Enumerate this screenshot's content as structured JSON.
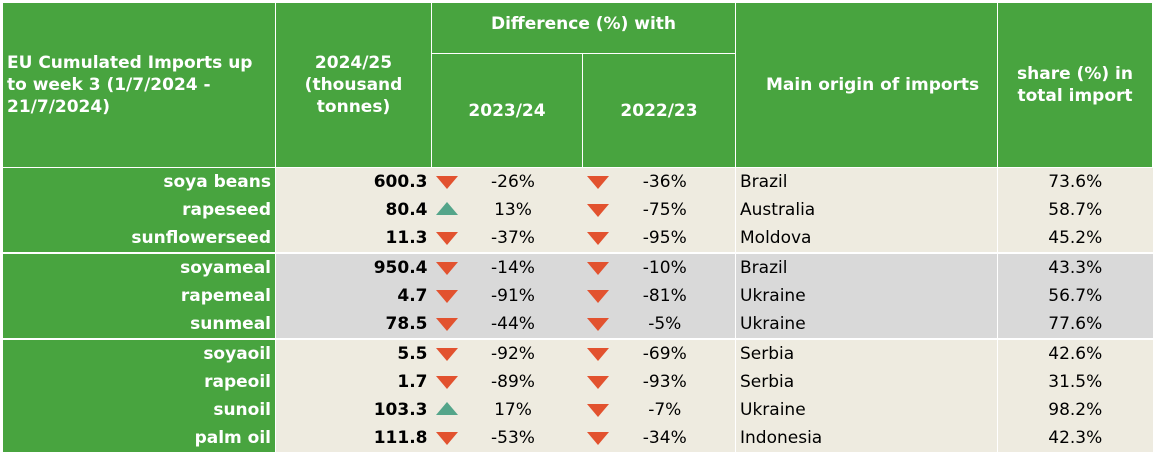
{
  "header": {
    "title": "EU Cumulated Imports up to week 3 (1/7/2024 - 21/7/2024)",
    "volume_header": "2024/25 (thousand tonnes)",
    "difference_header": "Difference (%) with",
    "diff_col_1": "2023/24",
    "diff_col_2": "2022/23",
    "origin_header": "Main origin of imports",
    "share_header": "share (%) in total import"
  },
  "colors": {
    "header_green": "#48a43f",
    "down_arrow": "#e2522f",
    "up_arrow": "#54a58a",
    "band_beige": "#eeebe0",
    "band_grey": "#d9d9d9"
  },
  "rows": [
    {
      "product": "soya beans",
      "volume": "600.3",
      "d1": "-26%",
      "d1_icon": "arrow-down-icon",
      "d2": "-36%",
      "d2_icon": "arrow-down-icon",
      "origin": "Brazil",
      "share": "73.6%"
    },
    {
      "product": "rapeseed",
      "volume": "80.4",
      "d1": "13%",
      "d1_icon": "arrow-up-icon",
      "d2": "-75%",
      "d2_icon": "arrow-down-icon",
      "origin": "Australia",
      "share": "58.7%"
    },
    {
      "product": "sunflowerseed",
      "volume": "11.3",
      "d1": "-37%",
      "d1_icon": "arrow-down-icon",
      "d2": "-95%",
      "d2_icon": "arrow-down-icon",
      "origin": "Moldova",
      "share": "45.2%"
    },
    {
      "product": "soyameal",
      "volume": "950.4",
      "d1": "-14%",
      "d1_icon": "arrow-down-icon",
      "d2": "-10%",
      "d2_icon": "arrow-down-icon",
      "origin": "Brazil",
      "share": "43.3%"
    },
    {
      "product": "rapemeal",
      "volume": "4.7",
      "d1": "-91%",
      "d1_icon": "arrow-down-icon",
      "d2": "-81%",
      "d2_icon": "arrow-down-icon",
      "origin": "Ukraine",
      "share": "56.7%"
    },
    {
      "product": "sunmeal",
      "volume": "78.5",
      "d1": "-44%",
      "d1_icon": "arrow-down-icon",
      "d2": "-5%",
      "d2_icon": "arrow-down-icon",
      "origin": "Ukraine",
      "share": "77.6%"
    },
    {
      "product": "soyaoil",
      "volume": "5.5",
      "d1": "-92%",
      "d1_icon": "arrow-down-icon",
      "d2": "-69%",
      "d2_icon": "arrow-down-icon",
      "origin": "Serbia",
      "share": "42.6%"
    },
    {
      "product": "rapeoil",
      "volume": "1.7",
      "d1": "-89%",
      "d1_icon": "arrow-down-icon",
      "d2": "-93%",
      "d2_icon": "arrow-down-icon",
      "origin": "Serbia",
      "share": "31.5%"
    },
    {
      "product": "sunoil",
      "volume": "103.3",
      "d1": "17%",
      "d1_icon": "arrow-up-icon",
      "d2": "-7%",
      "d2_icon": "arrow-down-icon",
      "origin": "Ukraine",
      "share": "98.2%"
    },
    {
      "product": "palm oil",
      "volume": "111.8",
      "d1": "-53%",
      "d1_icon": "arrow-down-icon",
      "d2": "-34%",
      "d2_icon": "arrow-down-icon",
      "origin": "Indonesia",
      "share": "42.3%"
    }
  ]
}
